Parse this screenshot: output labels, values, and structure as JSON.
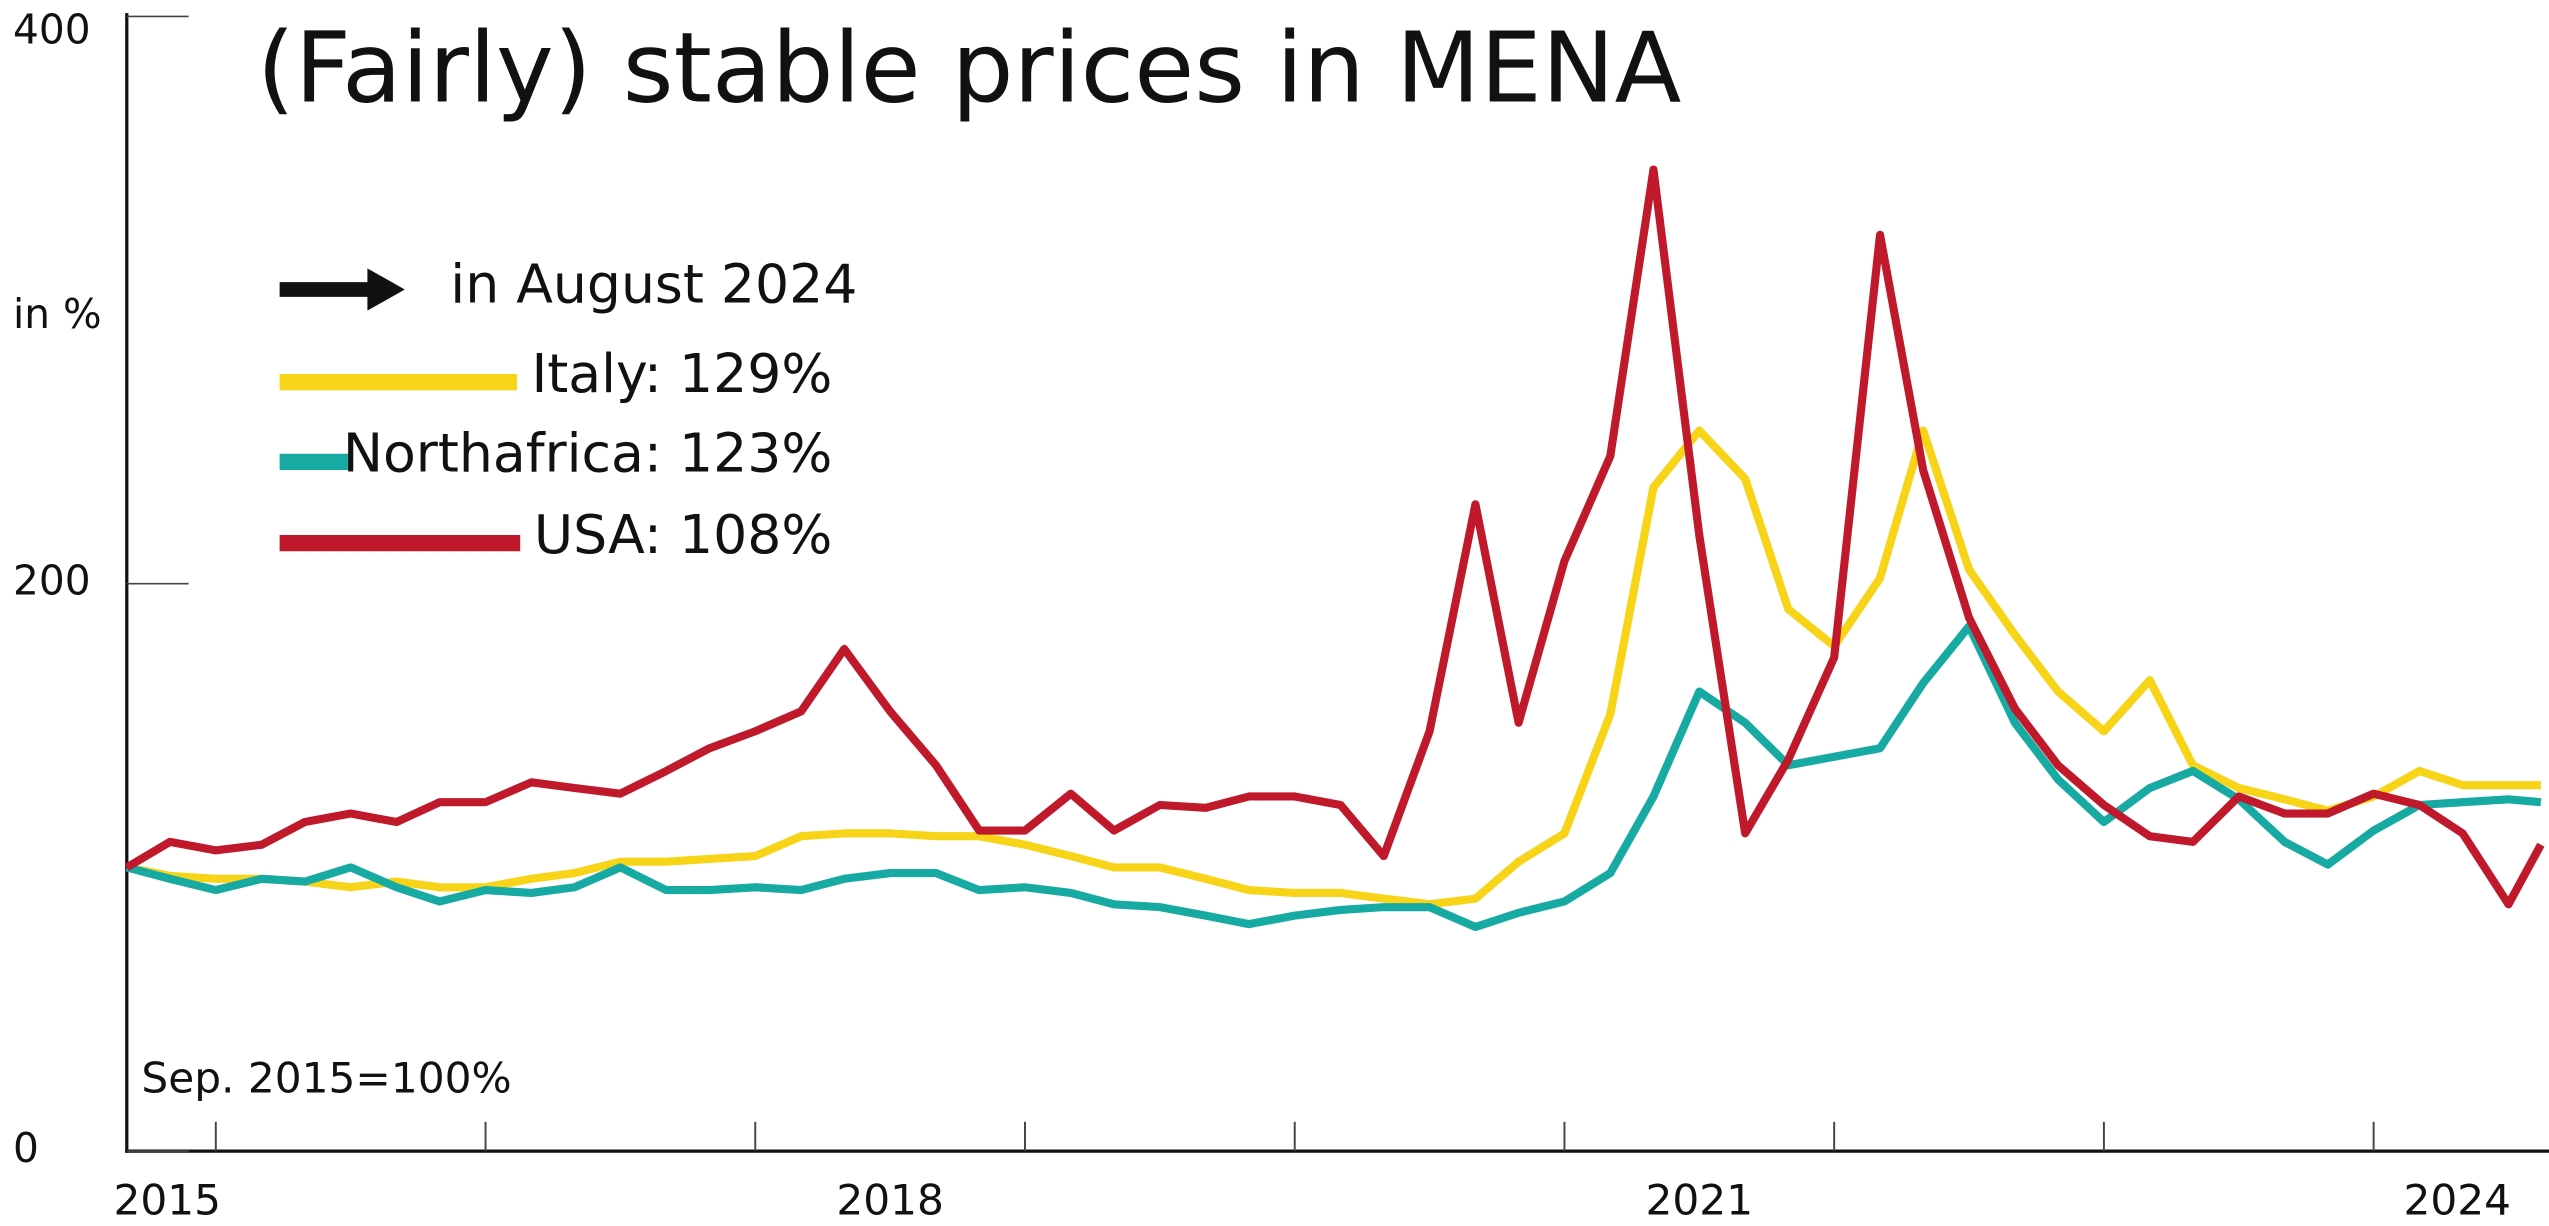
{
  "chart_data": {
    "type": "line",
    "title": "(Fairly) stable prices in MENA",
    "y_label": "in %",
    "note": "Sep. 2015=100%",
    "legend_title": "in August 2024",
    "ylim": [
      0,
      400
    ],
    "yticks": [
      0,
      200,
      400
    ],
    "xlim": [
      2015.67,
      2024.62
    ],
    "xticks": [
      2016,
      2017,
      2018,
      2019,
      2020,
      2021,
      2022,
      2023,
      2024
    ],
    "xlabels": [
      {
        "value": 2015.82,
        "label": "2015"
      },
      {
        "value": 2018.5,
        "label": "2018"
      },
      {
        "value": 2021.5,
        "label": "2021"
      },
      {
        "value": 2024.31,
        "label": "2024"
      }
    ],
    "x": [
      2015.67,
      2015.83,
      2016,
      2016.17,
      2016.33,
      2016.5,
      2016.67,
      2016.83,
      2017,
      2017.17,
      2017.33,
      2017.5,
      2017.67,
      2017.83,
      2018,
      2018.17,
      2018.33,
      2018.5,
      2018.67,
      2018.83,
      2019,
      2019.17,
      2019.33,
      2019.5,
      2019.67,
      2019.83,
      2020,
      2020.17,
      2020.33,
      2020.5,
      2020.67,
      2020.83,
      2021,
      2021.17,
      2021.33,
      2021.5,
      2021.67,
      2021.83,
      2022,
      2022.17,
      2022.33,
      2022.5,
      2022.67,
      2022.83,
      2023,
      2023.17,
      2023.33,
      2023.5,
      2023.67,
      2023.83,
      2024,
      2024.17,
      2024.33,
      2024.5,
      2024.62
    ],
    "series": [
      {
        "name": "Italy: 129%",
        "color": "#f7d417",
        "values": [
          100,
          97,
          96,
          96,
          95,
          93,
          95,
          93,
          93,
          96,
          98,
          102,
          102,
          103,
          104,
          111,
          112,
          112,
          111,
          111,
          108,
          104,
          100,
          100,
          96,
          92,
          91,
          91,
          89,
          87,
          89,
          102,
          112,
          154,
          234,
          254,
          237,
          191,
          178,
          202,
          254,
          205,
          182,
          162,
          148,
          166,
          136,
          128,
          124,
          120,
          125,
          134,
          129,
          129,
          129
        ]
      },
      {
        "name": "Northafrica: 123%",
        "color": "#16aaa3",
        "values": [
          100,
          96,
          92,
          96,
          95,
          100,
          93,
          88,
          92,
          91,
          93,
          100,
          92,
          92,
          93,
          92,
          96,
          98,
          98,
          92,
          93,
          91,
          87,
          86,
          83,
          80,
          83,
          85,
          86,
          86,
          79,
          84,
          88,
          98,
          125,
          162,
          151,
          136,
          139,
          142,
          165,
          185,
          151,
          131,
          116,
          128,
          134,
          124,
          109,
          101,
          113,
          122,
          123,
          124,
          123
        ]
      },
      {
        "name": "USA: 108%",
        "color": "#c0192b",
        "values": [
          100,
          109,
          106,
          108,
          116,
          119,
          116,
          123,
          123,
          130,
          128,
          126,
          134,
          142,
          148,
          155,
          177,
          155,
          136,
          113,
          113,
          126,
          113,
          122,
          121,
          125,
          125,
          122,
          104,
          148,
          228,
          151,
          208,
          245,
          346,
          217,
          112,
          138,
          174,
          323,
          240,
          188,
          156,
          136,
          122,
          111,
          109,
          125,
          119,
          119,
          126,
          122,
          112,
          87,
          108
        ]
      }
    ]
  }
}
